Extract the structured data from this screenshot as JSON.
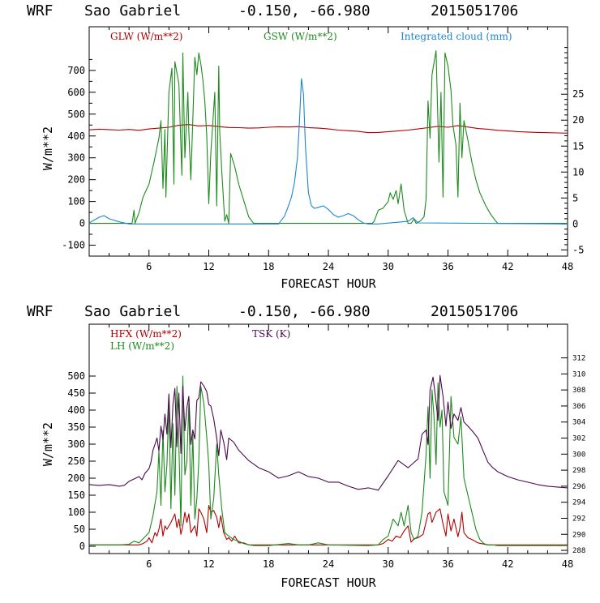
{
  "colors": {
    "red": "#b00000",
    "green": "#1e8a1e",
    "blue": "#1c86d0",
    "purple": "#4b0a4b"
  },
  "chart_data": [
    {
      "type": "line",
      "header": {
        "model": "WRF",
        "station": "Sao Gabriel",
        "coords": "-0.150, -66.980",
        "date": "2015051706"
      },
      "xlabel": "FORECAST HOUR",
      "ylabel": "W/m**2",
      "xlim": [
        0,
        48
      ],
      "xticks": [
        "6",
        "12",
        "18",
        "24",
        "30",
        "36",
        "42",
        "48"
      ],
      "ylim": [
        -150,
        900
      ],
      "yticks": [
        "-100",
        "0",
        "100",
        "200",
        "300",
        "400",
        "500",
        "600",
        "700"
      ],
      "y2lim": [
        -6.2,
        38.0
      ],
      "y2ticks": [
        "-5",
        "0",
        "5",
        "10",
        "15",
        "20",
        "25"
      ],
      "series": [
        {
          "name": "GLW (W/m**2)",
          "axis": "left",
          "color": "red",
          "x": [
            0,
            1,
            2,
            3,
            4,
            5,
            6,
            7,
            8,
            9,
            10,
            11,
            12,
            13,
            14,
            15,
            16,
            17,
            18,
            19,
            20,
            21,
            22,
            23,
            24,
            25,
            26,
            27,
            28,
            29,
            30,
            31,
            32,
            33,
            34,
            35,
            36,
            37,
            38,
            39,
            40,
            41,
            42,
            43,
            44,
            45,
            46,
            47,
            48
          ],
          "y": [
            428,
            431,
            429,
            427,
            430,
            426,
            432,
            436,
            440,
            449,
            452,
            446,
            448,
            443,
            439,
            438,
            436,
            437,
            440,
            442,
            441,
            443,
            438,
            436,
            432,
            427,
            424,
            421,
            415,
            416,
            420,
            423,
            427,
            432,
            438,
            444,
            440,
            447,
            441,
            434,
            431,
            426,
            423,
            420,
            418,
            416,
            415,
            414,
            413
          ]
        },
        {
          "name": "GSW (W/m**2)",
          "axis": "left",
          "color": "green",
          "x": [
            0,
            4.3,
            4.5,
            4.6,
            5,
            5.4,
            6,
            6.5,
            7,
            7.2,
            7.4,
            7.6,
            7.7,
            8,
            8.3,
            8.5,
            8.6,
            9,
            9.3,
            9.4,
            9.6,
            9.9,
            10,
            10.2,
            10.6,
            10.8,
            11,
            11.2,
            11.4,
            11.6,
            11.8,
            12,
            12.2,
            12.6,
            12.8,
            13,
            13.1,
            13.3,
            13.6,
            13.8,
            14,
            14.2,
            14.6,
            15,
            15.6,
            16,
            16.5,
            28.4,
            28.6,
            29,
            29.5,
            30,
            30.2,
            30.5,
            30.8,
            31,
            31.3,
            31.6,
            32,
            32.3,
            32.6,
            32.8,
            33.2,
            33.6,
            33.8,
            34,
            34.2,
            34.4,
            34.8,
            35.1,
            35.3,
            35.5,
            35.7,
            36,
            36.3,
            36.5,
            36.8,
            37,
            37.2,
            37.4,
            37.6,
            38,
            38.4,
            38.8,
            39.2,
            39.8,
            40.3,
            40.8,
            41,
            48
          ],
          "y": [
            0,
            0,
            60,
            0,
            50,
            120,
            180,
            280,
            390,
            470,
            160,
            430,
            120,
            600,
            710,
            180,
            740,
            640,
            220,
            780,
            300,
            600,
            420,
            200,
            760,
            680,
            780,
            730,
            660,
            560,
            400,
            90,
            320,
            600,
            80,
            720,
            420,
            240,
            10,
            40,
            0,
            320,
            260,
            180,
            90,
            30,
            0,
            0,
            10,
            60,
            70,
            100,
            140,
            110,
            150,
            90,
            180,
            60,
            0,
            0,
            20,
            0,
            10,
            30,
            110,
            560,
            390,
            680,
            790,
            280,
            600,
            120,
            780,
            720,
            610,
            450,
            360,
            120,
            550,
            300,
            470,
            380,
            280,
            200,
            140,
            80,
            40,
            10,
            0,
            0
          ]
        },
        {
          "name": "Integrated cloud (mm)",
          "axis": "right",
          "color": "blue",
          "x": [
            0,
            1,
            1.5,
            2,
            3,
            4,
            4.2,
            5,
            19,
            19.6,
            20,
            20.3,
            20.6,
            20.9,
            21.1,
            21.3,
            21.5,
            21.7,
            22,
            22.3,
            22.6,
            23,
            23.5,
            24,
            24.5,
            25,
            25.5,
            26,
            26.5,
            27,
            27.5,
            28,
            29,
            32,
            32.5,
            33,
            48
          ],
          "y": [
            0.2,
            1.3,
            1.6,
            1.0,
            0.4,
            0.0,
            0.0,
            0.0,
            0.0,
            1.5,
            3.5,
            5.2,
            8.0,
            12.8,
            20.0,
            28.0,
            25.0,
            15.0,
            6.0,
            3.5,
            3.0,
            3.2,
            3.5,
            2.8,
            1.8,
            1.3,
            1.6,
            2.0,
            1.6,
            0.8,
            0.2,
            0.0,
            0.0,
            0.5,
            1.2,
            0.2,
            0.0
          ]
        }
      ]
    },
    {
      "type": "line",
      "header": {
        "model": "WRF",
        "station": "Sao Gabriel",
        "coords": "-0.150, -66.980",
        "date": "2015051706"
      },
      "xlabel": "FORECAST HOUR",
      "ylabel": "W/m**2",
      "xlim": [
        0,
        48
      ],
      "xticks": [
        "6",
        "12",
        "18",
        "24",
        "30",
        "36",
        "42",
        "48"
      ],
      "yticks": [
        {
          "label": "0",
          "value": 0
        },
        {
          "label": "50",
          "value": 50
        },
        {
          "label": "100",
          "value": 100
        },
        {
          "label": "150",
          "value": 150
        },
        {
          "label": "200",
          "value": 200
        },
        {
          "label": "250",
          "value": 250
        },
        {
          "label": "300",
          "value": 300
        },
        {
          "label": "350",
          "value": 350
        },
        {
          "label": "400",
          "value": 400
        },
        {
          "label": "450",
          "value": 450
        },
        {
          "label": "500",
          "value": 500
        }
      ],
      "y2lim": [
        287.6,
        316.2
      ],
      "y2ticks": [
        "288",
        "290",
        "292",
        "294",
        "296",
        "298",
        "300",
        "302",
        "304",
        "306",
        "308",
        "310",
        "312"
      ],
      "series": [
        {
          "name": "HFX (W/m**2)",
          "axis": "left",
          "color": "red",
          "x": [
            0,
            5,
            5.4,
            5.8,
            6,
            6.3,
            6.6,
            6.8,
            7,
            7.2,
            7.4,
            7.6,
            7.8,
            8.2,
            8.6,
            8.8,
            9,
            9.2,
            9.4,
            9.6,
            9.8,
            10,
            10.2,
            10.6,
            10.8,
            11,
            11.2,
            11.5,
            11.8,
            12,
            12.2,
            12.5,
            12.8,
            13,
            13.2,
            13.5,
            13.8,
            14,
            14.3,
            14.6,
            15,
            15.5,
            16,
            17,
            29,
            29.5,
            30,
            30.4,
            30.8,
            31.2,
            31.6,
            32,
            32.3,
            32.6,
            33,
            33.5,
            34,
            34.2,
            34.4,
            34.8,
            35.2,
            35.5,
            35.8,
            36,
            36.3,
            36.6,
            37,
            37.2,
            37.4,
            37.6,
            38,
            38.4,
            39,
            40,
            41,
            48
          ],
          "y": [
            4,
            4,
            8,
            15,
            25,
            10,
            40,
            30,
            50,
            80,
            30,
            60,
            50,
            70,
            95,
            55,
            80,
            35,
            60,
            100,
            70,
            95,
            40,
            60,
            30,
            110,
            100,
            80,
            40,
            120,
            100,
            105,
            85,
            55,
            90,
            40,
            20,
            25,
            15,
            30,
            10,
            10,
            4,
            4,
            4,
            8,
            20,
            15,
            30,
            25,
            45,
            60,
            12,
            22,
            25,
            35,
            95,
            100,
            70,
            100,
            110,
            65,
            30,
            95,
            45,
            80,
            28,
            55,
            100,
            40,
            25,
            20,
            10,
            4,
            4,
            4
          ]
        },
        {
          "name": "LH (W/m**2)",
          "axis": "left",
          "color": "green",
          "x": [
            0,
            3,
            4,
            4.5,
            5,
            5.5,
            6,
            6.4,
            6.8,
            7,
            7.2,
            7.4,
            7.6,
            7.8,
            8,
            8.2,
            8.4,
            8.6,
            8.8,
            9,
            9.2,
            9.4,
            9.6,
            9.8,
            10,
            10.2,
            10.4,
            10.6,
            10.8,
            11,
            11.2,
            11.5,
            11.8,
            12,
            12.2,
            12.5,
            12.8,
            13,
            13.3,
            13.6,
            14,
            14.5,
            15,
            15.5,
            16,
            16.6,
            17,
            18,
            20,
            21,
            22,
            23,
            24,
            28,
            29,
            29.5,
            30,
            30.5,
            31,
            31.3,
            31.6,
            32,
            32.3,
            32.6,
            33,
            33.4,
            33.8,
            34,
            34.2,
            34.4,
            34.6,
            34.8,
            35,
            35.2,
            35.4,
            35.6,
            36,
            36.3,
            36.6,
            37,
            37.3,
            37.6,
            38,
            38.4,
            38.8,
            39.2,
            39.6,
            40,
            40.5,
            41,
            48
          ],
          "y": [
            4,
            4,
            6,
            15,
            10,
            25,
            40,
            90,
            160,
            280,
            120,
            340,
            160,
            240,
            420,
            110,
            360,
            150,
            470,
            300,
            60,
            500,
            210,
            250,
            420,
            120,
            330,
            80,
            140,
            250,
            470,
            420,
            320,
            240,
            80,
            140,
            300,
            210,
            110,
            40,
            30,
            20,
            15,
            8,
            4,
            2,
            2,
            2,
            8,
            4,
            4,
            10,
            4,
            2,
            4,
            20,
            30,
            80,
            60,
            100,
            60,
            120,
            40,
            20,
            30,
            100,
            270,
            410,
            200,
            460,
            380,
            240,
            480,
            350,
            400,
            160,
            120,
            440,
            320,
            300,
            380,
            200,
            150,
            100,
            50,
            20,
            8,
            4,
            4,
            2,
            2
          ]
        },
        {
          "name": "TSK (K)",
          "axis": "right",
          "color": "purple",
          "x": [
            0,
            1,
            2,
            3,
            3.5,
            4,
            4.5,
            5,
            5.3,
            5.6,
            6,
            6.2,
            6.4,
            6.6,
            6.8,
            7,
            7.2,
            7.4,
            7.6,
            7.8,
            8,
            8.2,
            8.4,
            8.6,
            8.8,
            9,
            9.2,
            9.4,
            9.6,
            9.8,
            10,
            10.2,
            10.4,
            10.6,
            10.8,
            11,
            11.2,
            11.5,
            11.8,
            12,
            12.2,
            12.5,
            12.8,
            13,
            13.2,
            13.5,
            13.8,
            14,
            14.5,
            15,
            16,
            17,
            18,
            19,
            20,
            21,
            22,
            23,
            24,
            25,
            26,
            27,
            28,
            29,
            30,
            31,
            32,
            33,
            33.4,
            33.8,
            34,
            34.2,
            34.5,
            34.8,
            35,
            35.2,
            35.5,
            35.8,
            36,
            36.3,
            36.6,
            37,
            37.3,
            37.6,
            38,
            38.5,
            39,
            39.5,
            40,
            40.5,
            41,
            42,
            43,
            44,
            45,
            46,
            47,
            48
          ],
          "y": [
            296.2,
            296.1,
            296.2,
            296.0,
            296.1,
            296.6,
            296.9,
            297.2,
            296.8,
            297.6,
            298.2,
            299.0,
            300.5,
            301.2,
            302.0,
            300.4,
            303.5,
            301.8,
            305.0,
            302.5,
            307.5,
            300.8,
            306.2,
            308.2,
            300.9,
            307.6,
            300.1,
            308.5,
            302.9,
            305.8,
            307.2,
            301.2,
            303.0,
            301.9,
            306.7,
            307.0,
            309.0,
            308.5,
            307.8,
            306.2,
            306.0,
            304.4,
            302.0,
            299.8,
            303.0,
            301.5,
            299.3,
            302.0,
            301.5,
            300.5,
            299.2,
            298.3,
            297.8,
            297.0,
            297.3,
            297.8,
            297.2,
            297.0,
            296.5,
            296.5,
            296.0,
            295.6,
            295.8,
            295.5,
            297.3,
            299.2,
            298.3,
            299.4,
            302.5,
            303.0,
            301.2,
            308.0,
            309.6,
            306.5,
            304.2,
            309.8,
            307.2,
            303.5,
            306.5,
            303.2,
            305.0,
            304.2,
            305.8,
            304.0,
            303.5,
            302.8,
            302.0,
            300.5,
            299.0,
            298.3,
            297.8,
            297.2,
            296.8,
            296.5,
            296.2,
            296.0,
            295.9,
            295.8
          ]
        }
      ]
    }
  ]
}
